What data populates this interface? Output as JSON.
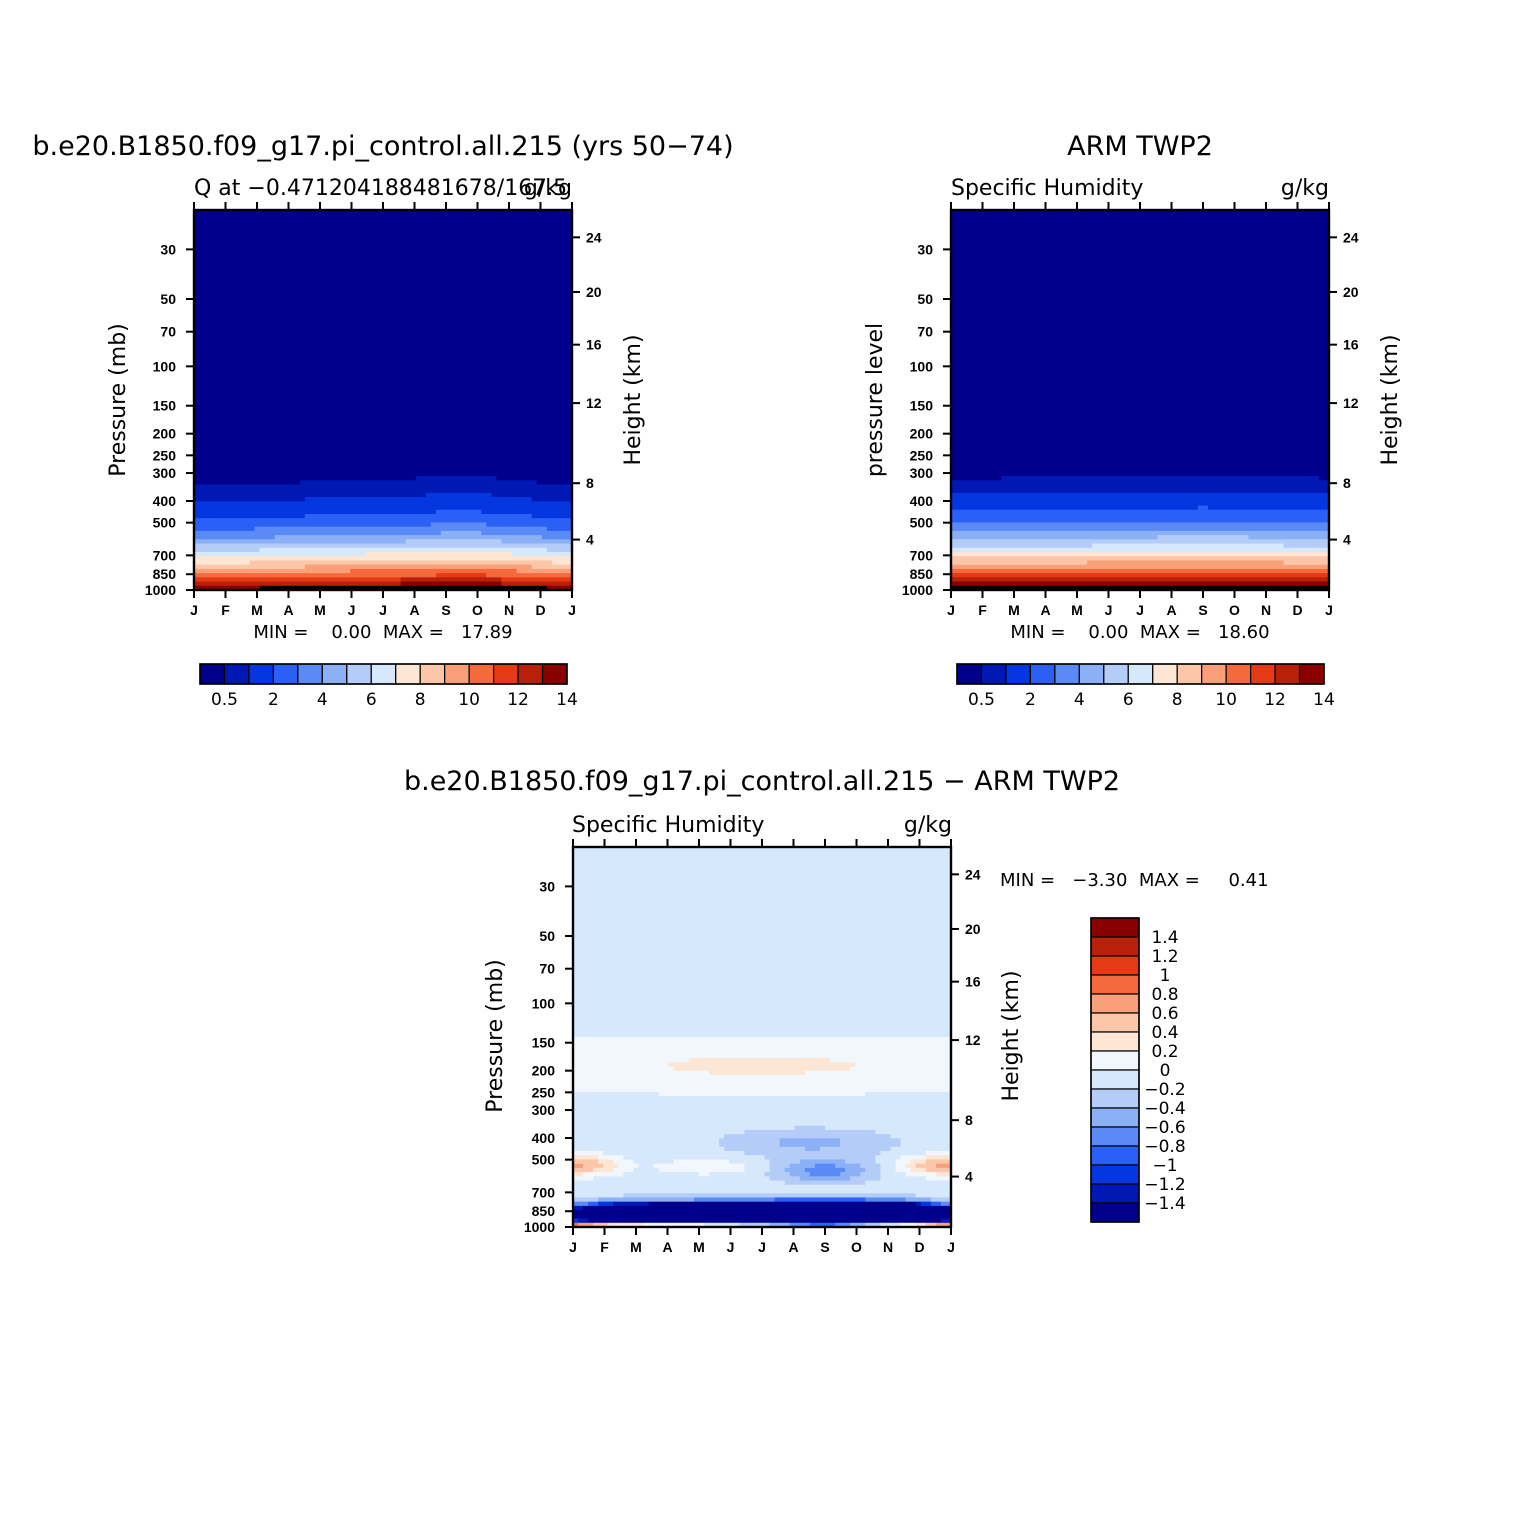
{
  "colors": {
    "seq": [
      "#00008c",
      "#0018b4",
      "#0537e0",
      "#2a60f5",
      "#5a8af5",
      "#8bb0f5",
      "#b4cdf8",
      "#d6e8fc",
      "#fde6d3",
      "#fcc6a9",
      "#f9a07a",
      "#f56a3c",
      "#e43a16",
      "#b82008",
      "#8a0000"
    ],
    "div": [
      "#00008c",
      "#0018b4",
      "#0537e0",
      "#2a60f5",
      "#5a8af5",
      "#8bb0f5",
      "#b4cdf8",
      "#d6e8fc",
      "#f2f6fd",
      "#fde6d3",
      "#fcc6a9",
      "#f9a07a",
      "#f56a3c",
      "#e43a16",
      "#b82008",
      "#8a0000"
    ]
  },
  "chart_data": [
    {
      "type": "heatmap",
      "title": "b.e20.B1850.f09_g17.pi_control.all.215 (yrs 50−74)",
      "left_label": "Q at −0.471204188481678/167.5",
      "right_label": "g/kg",
      "ylabel": "Pressure (mb)",
      "y2label": "Height (km)",
      "x_ticks": [
        "J",
        "F",
        "M",
        "A",
        "M",
        "J",
        "J",
        "A",
        "S",
        "O",
        "N",
        "D",
        "J"
      ],
      "y_ticks": [
        "30",
        "50",
        "70",
        "100",
        "150",
        "200",
        "250",
        "300",
        "400",
        "500",
        "700",
        "850",
        "1000"
      ],
      "y2_ticks": [
        "24",
        "20",
        "16",
        "12",
        "8",
        "4"
      ],
      "y_log_range": [
        20,
        1000
      ],
      "stats": "MIN =    0.00  MAX =   17.89",
      "colorbar_labels": [
        "0.5",
        "2",
        "4",
        "6",
        "8",
        "10",
        "12",
        "14"
      ],
      "levels": [
        0.5,
        1,
        2,
        3,
        4,
        5,
        6,
        7,
        8,
        9,
        10,
        11,
        12,
        13,
        14
      ],
      "annual_cycle_shift_hPa": [
        10,
        8,
        2,
        0,
        -5,
        -8,
        -10,
        -15,
        -25,
        -25,
        -10,
        0,
        10
      ],
      "q_profile_hPa": [
        [
          20,
          0
        ],
        [
          300,
          0.3
        ],
        [
          380,
          0.8
        ],
        [
          470,
          2
        ],
        [
          530,
          3
        ],
        [
          580,
          4
        ],
        [
          620,
          5
        ],
        [
          660,
          6
        ],
        [
          700,
          7
        ],
        [
          750,
          8
        ],
        [
          790,
          9
        ],
        [
          830,
          10
        ],
        [
          880,
          11
        ],
        [
          910,
          12
        ],
        [
          950,
          13
        ],
        [
          990,
          14.5
        ]
      ]
    },
    {
      "type": "heatmap",
      "title": "ARM TWP2",
      "left_label": "Specific Humidity",
      "right_label": "g/kg",
      "ylabel": "pressure level",
      "y2label": "Height (km)",
      "x_ticks": [
        "J",
        "F",
        "M",
        "A",
        "M",
        "J",
        "J",
        "A",
        "S",
        "O",
        "N",
        "D",
        "J"
      ],
      "y_ticks": [
        "30",
        "50",
        "70",
        "100",
        "150",
        "200",
        "250",
        "300",
        "400",
        "500",
        "700",
        "850",
        "1000"
      ],
      "y2_ticks": [
        "24",
        "20",
        "16",
        "12",
        "8",
        "4"
      ],
      "y_log_range": [
        20,
        1000
      ],
      "stats": "MIN =    0.00  MAX =   18.60",
      "colorbar_labels": [
        "0.5",
        "2",
        "4",
        "6",
        "8",
        "10",
        "12",
        "14"
      ],
      "levels": [
        0.5,
        1,
        2,
        3,
        4,
        5,
        6,
        7,
        8,
        9,
        10,
        11,
        12,
        13,
        14
      ],
      "annual_cycle_shift_hPa": [
        0,
        0,
        -3,
        -5,
        -5,
        -8,
        -8,
        -10,
        -12,
        -10,
        -8,
        -5,
        0
      ],
      "q_profile_hPa": [
        [
          20,
          0
        ],
        [
          290,
          0.3
        ],
        [
          360,
          0.8
        ],
        [
          440,
          2
        ],
        [
          500,
          3
        ],
        [
          545,
          4
        ],
        [
          590,
          5
        ],
        [
          640,
          6
        ],
        [
          680,
          7
        ],
        [
          720,
          8
        ],
        [
          760,
          9
        ],
        [
          800,
          10
        ],
        [
          840,
          11
        ],
        [
          880,
          12
        ],
        [
          930,
          13
        ],
        [
          990,
          14.5
        ]
      ]
    },
    {
      "type": "heatmap",
      "title": "b.e20.B1850.f09_g17.pi_control.all.215 − ARM TWP2",
      "left_label": "Specific Humidity",
      "right_label": "g/kg",
      "ylabel": "Pressure (mb)",
      "y2label": "Height (km)",
      "x_ticks": [
        "J",
        "F",
        "M",
        "A",
        "M",
        "J",
        "J",
        "A",
        "S",
        "O",
        "N",
        "D",
        "J"
      ],
      "y_ticks": [
        "30",
        "50",
        "70",
        "100",
        "150",
        "200",
        "250",
        "300",
        "400",
        "500",
        "700",
        "850",
        "1000"
      ],
      "y2_ticks": [
        "24",
        "20",
        "16",
        "12",
        "8",
        "4"
      ],
      "y_log_range": [
        20,
        1000
      ],
      "stats": "MIN =   −3.30  MAX =     0.41",
      "colorbar_labels": [
        "1.4",
        "1.2",
        "1",
        "0.8",
        "0.6",
        "0.4",
        "0.2",
        "0",
        "−0.2",
        "−0.4",
        "−0.6",
        "−0.8",
        "−1",
        "−1.2",
        "−1.4"
      ],
      "levels": [
        -1.4,
        -1.2,
        -1,
        -0.8,
        -0.6,
        -0.4,
        -0.2,
        0,
        0.2,
        0.4,
        0.6,
        0.8,
        1,
        1.2,
        1.4
      ]
    }
  ]
}
